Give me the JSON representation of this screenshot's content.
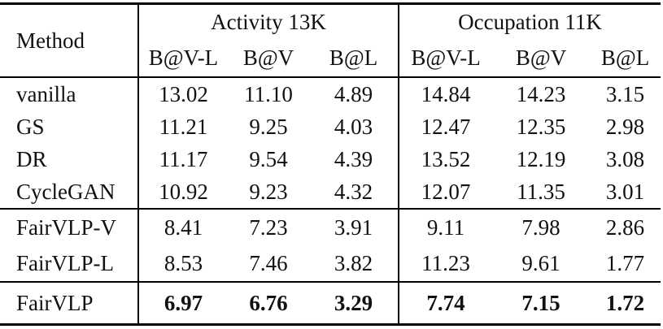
{
  "table": {
    "method_header": "Method",
    "groups": [
      {
        "label": "Activity 13K",
        "cols": [
          "B@V-L",
          "B@V",
          "B@L"
        ]
      },
      {
        "label": "Occupation 11K",
        "cols": [
          "B@V-L",
          "B@V",
          "B@L"
        ]
      }
    ],
    "sections": [
      {
        "rows": [
          {
            "method": "vanilla",
            "values": [
              "13.02",
              "11.10",
              "4.89",
              "14.84",
              "14.23",
              "3.15"
            ]
          },
          {
            "method": "GS",
            "values": [
              "11.21",
              "9.25",
              "4.03",
              "12.47",
              "12.35",
              "2.98"
            ]
          },
          {
            "method": "DR",
            "values": [
              "11.17",
              "9.54",
              "4.39",
              "13.52",
              "12.19",
              "3.08"
            ]
          },
          {
            "method": "CycleGAN",
            "values": [
              "10.92",
              "9.23",
              "4.32",
              "12.07",
              "11.35",
              "3.01"
            ]
          }
        ]
      },
      {
        "rows": [
          {
            "method": "FairVLP-V",
            "values": [
              "8.41",
              "7.23",
              "3.91",
              "9.11",
              "7.98",
              "2.86"
            ]
          },
          {
            "method": "FairVLP-L",
            "values": [
              "8.53",
              "7.46",
              "3.82",
              "11.23",
              "9.61",
              "1.77"
            ]
          }
        ]
      },
      {
        "rows": [
          {
            "method": "FairVLP",
            "values": [
              "6.97",
              "6.76",
              "3.29",
              "7.74",
              "7.15",
              "1.72"
            ]
          }
        ]
      }
    ],
    "colors": {
      "text": "#111111",
      "rule": "#000000",
      "background": "#ffffff"
    }
  }
}
